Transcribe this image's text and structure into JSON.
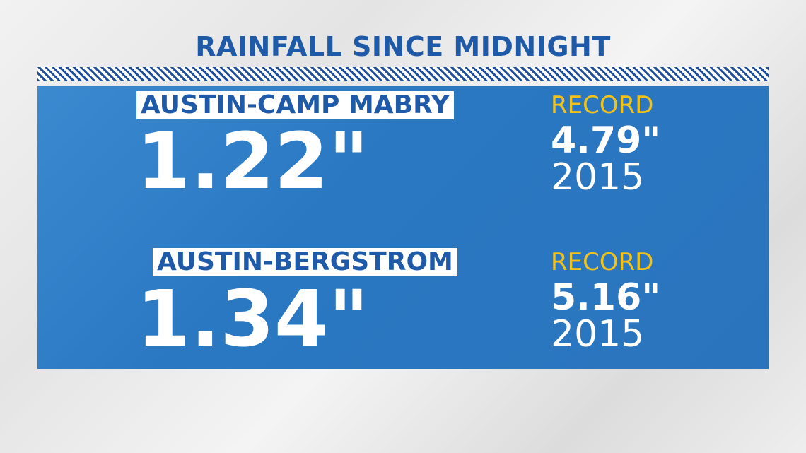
{
  "header": {
    "title": "RAINFALL SINCE MIDNIGHT"
  },
  "stations": [
    {
      "name": "AUSTIN-CAMP MABRY",
      "amount": "1.22\"",
      "record_label": "RECORD",
      "record_amount": "4.79\"",
      "record_year": "2015"
    },
    {
      "name": "AUSTIN-BERGSTROM",
      "amount": "1.34\"",
      "record_label": "RECORD",
      "record_amount": "5.16\"",
      "record_year": "2015"
    }
  ]
}
